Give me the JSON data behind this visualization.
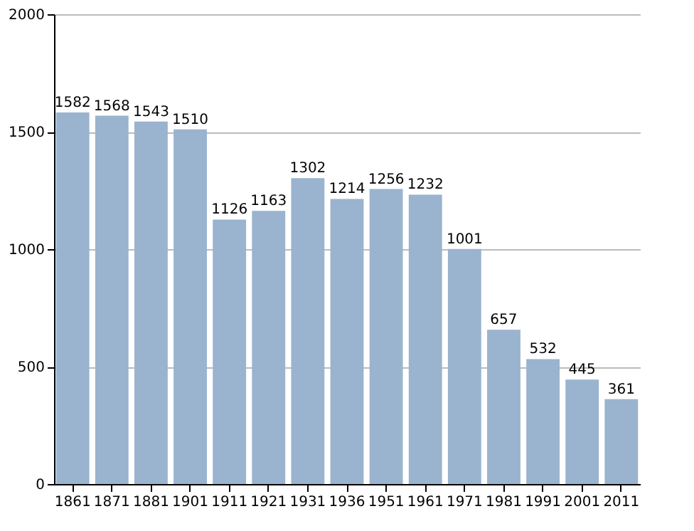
{
  "chart_data": {
    "type": "bar",
    "categories": [
      "1861",
      "1871",
      "1881",
      "1901",
      "1911",
      "1921",
      "1931",
      "1936",
      "1951",
      "1961",
      "1971",
      "1981",
      "1991",
      "2001",
      "2011"
    ],
    "values": [
      1582,
      1568,
      1543,
      1510,
      1126,
      1163,
      1302,
      1214,
      1256,
      1232,
      1001,
      657,
      532,
      445,
      361
    ],
    "color": "#9ab3cf",
    "ylim": [
      0,
      2000
    ],
    "yticks": [
      0,
      500,
      1000,
      1500,
      2000
    ],
    "grid": "y",
    "data_labels": true
  }
}
